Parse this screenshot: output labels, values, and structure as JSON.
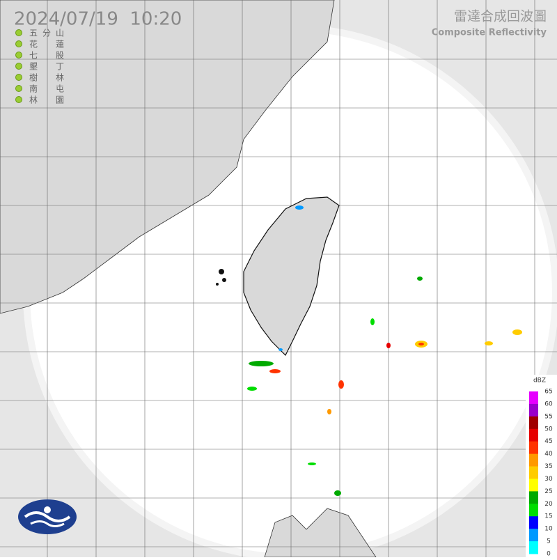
{
  "header": {
    "timestamp": "2024/07/19  10:20",
    "title_zh": "雷達合成回波圖",
    "title_en": "Composite Reflectivity"
  },
  "stations": [
    "五分山",
    "花蓮",
    "七股",
    "墾丁",
    "樹林",
    "南屯",
    "林園"
  ],
  "legend": {
    "unit": "dBZ",
    "levels": [
      65,
      60,
      55,
      50,
      45,
      40,
      35,
      30,
      25,
      20,
      15,
      10,
      5,
      0
    ],
    "colors": [
      "#e600ff",
      "#9900cc",
      "#a00000",
      "#e60000",
      "#ff3300",
      "#ff9900",
      "#ffcc00",
      "#ffff00",
      "#00aa00",
      "#00dd00",
      "#0000ff",
      "#0099ff",
      "#00ffff"
    ]
  }
}
